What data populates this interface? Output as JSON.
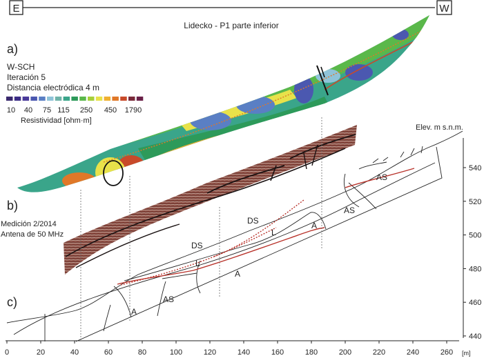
{
  "orientation": {
    "left": "E",
    "right": "W"
  },
  "title": "Lidecko - P1 parte inferior",
  "panels": {
    "a": "a)",
    "b": "b)",
    "c": "c)"
  },
  "ert": {
    "method": "W-SCH",
    "iteration": "Iteración 5",
    "spacing": "Distancia electródica 4 m",
    "scale_values": [
      "10",
      "40",
      "75",
      "115",
      "250",
      "450",
      "1790"
    ],
    "scale_colors": [
      "#3a2a6e",
      "#3b2d86",
      "#4a3a9a",
      "#4b58b0",
      "#5a7fc4",
      "#8fc3d8",
      "#6fb3a8",
      "#3aa58a",
      "#2d9a5a",
      "#5ab84a",
      "#a6cf3a",
      "#e8e24a",
      "#f0b030",
      "#e07828",
      "#c84a2a",
      "#7a2a3a",
      "#6a2048"
    ],
    "unit_label": "Resistividad [ohm·m]"
  },
  "gpr": {
    "line1": "Medición 2/2014",
    "line2": "Antena de 50 MHz"
  },
  "section_labels": [
    "AS",
    "AS",
    "DS",
    "DS",
    "L",
    "L",
    "A",
    "A",
    "A",
    "AS"
  ],
  "elevation_axis": {
    "title": "Elev. m s.n.m.",
    "ticks": [
      440,
      460,
      480,
      500,
      520,
      540
    ]
  },
  "distance_axis": {
    "ticks": [
      0,
      20,
      40,
      60,
      80,
      100,
      120,
      140,
      160,
      180,
      200,
      220,
      240,
      260
    ],
    "unit": "[m]"
  }
}
